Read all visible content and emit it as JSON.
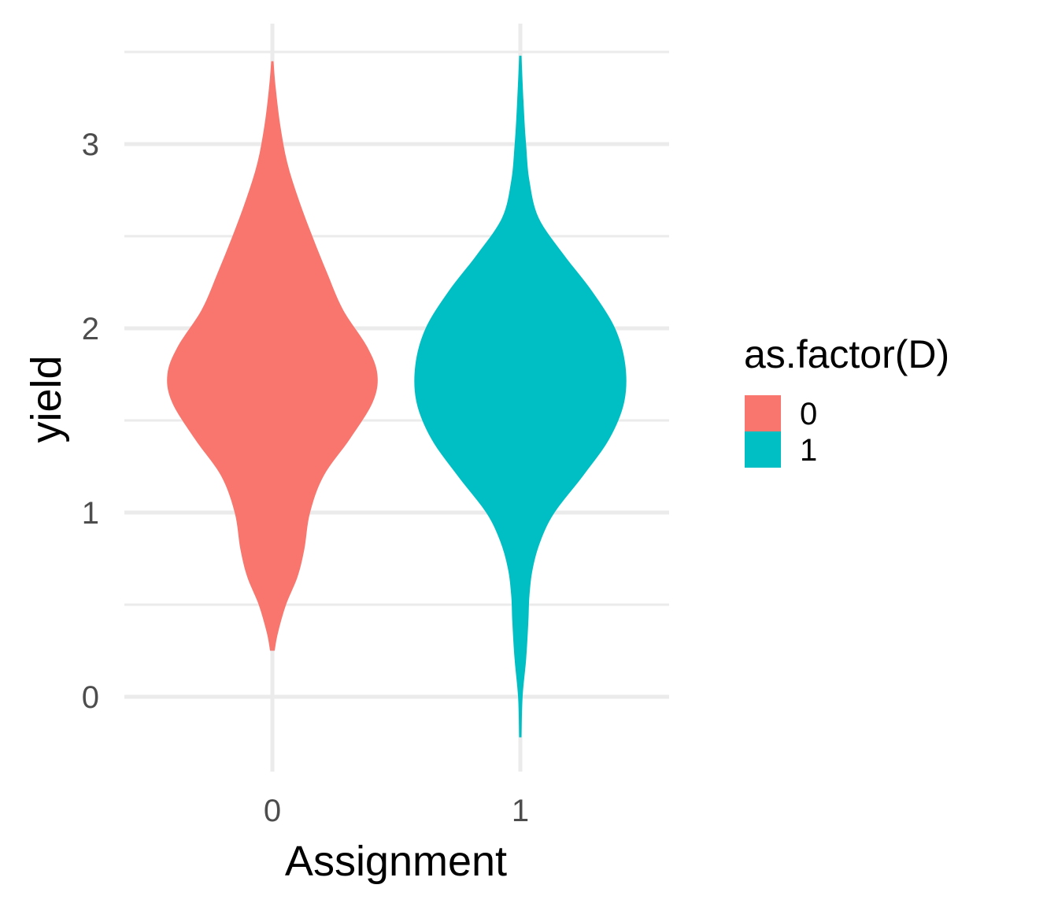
{
  "chart_data": {
    "type": "violin",
    "xlabel": "Assignment",
    "ylabel": "yield",
    "categories": [
      "0",
      "1"
    ],
    "y_ticks": [
      "0",
      "1",
      "2",
      "3"
    ],
    "ylim": [
      -0.35,
      3.6
    ],
    "grid": true,
    "legend": {
      "title": "as.factor(D)",
      "placement": "right",
      "entries": [
        {
          "label": "0",
          "color": "#F8766D"
        },
        {
          "label": "1",
          "color": "#00BFC4"
        }
      ]
    },
    "series": [
      {
        "category": "0",
        "color": "#F8766D",
        "min": 0.25,
        "max": 3.45,
        "density": [
          [
            0.25,
            0.02
          ],
          [
            0.35,
            0.05
          ],
          [
            0.5,
            0.12
          ],
          [
            0.65,
            0.22
          ],
          [
            0.8,
            0.28
          ],
          [
            1.0,
            0.33
          ],
          [
            1.2,
            0.45
          ],
          [
            1.4,
            0.68
          ],
          [
            1.6,
            0.88
          ],
          [
            1.75,
            0.92
          ],
          [
            1.9,
            0.83
          ],
          [
            2.1,
            0.62
          ],
          [
            2.3,
            0.48
          ],
          [
            2.5,
            0.35
          ],
          [
            2.7,
            0.23
          ],
          [
            2.9,
            0.13
          ],
          [
            3.1,
            0.07
          ],
          [
            3.3,
            0.03
          ],
          [
            3.45,
            0.01
          ]
        ]
      },
      {
        "category": "1",
        "color": "#00BFC4",
        "min": -0.22,
        "max": 3.48,
        "density": [
          [
            -0.22,
            0.01
          ],
          [
            0.0,
            0.02
          ],
          [
            0.2,
            0.05
          ],
          [
            0.4,
            0.07
          ],
          [
            0.55,
            0.08
          ],
          [
            0.7,
            0.11
          ],
          [
            0.85,
            0.18
          ],
          [
            1.0,
            0.3
          ],
          [
            1.2,
            0.55
          ],
          [
            1.4,
            0.78
          ],
          [
            1.6,
            0.91
          ],
          [
            1.8,
            0.92
          ],
          [
            2.0,
            0.83
          ],
          [
            2.2,
            0.63
          ],
          [
            2.4,
            0.38
          ],
          [
            2.6,
            0.16
          ],
          [
            2.8,
            0.08
          ],
          [
            3.0,
            0.05
          ],
          [
            3.2,
            0.03
          ],
          [
            3.48,
            0.01
          ]
        ]
      }
    ]
  }
}
